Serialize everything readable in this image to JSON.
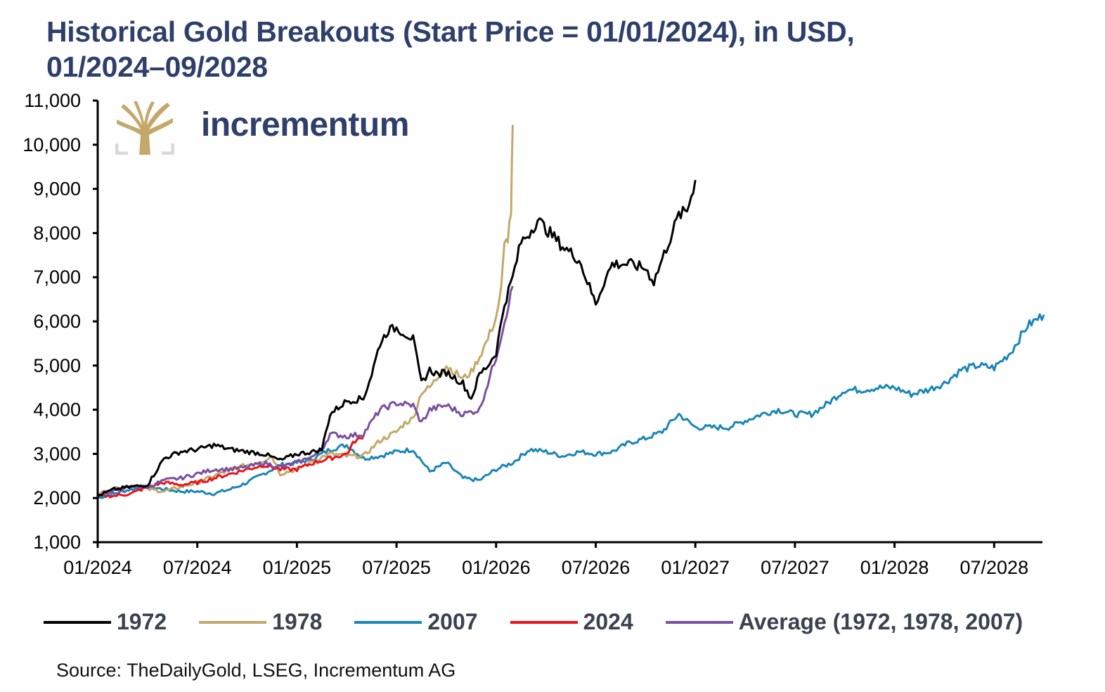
{
  "title_line1": "Historical Gold Breakouts (Start Price = 01/01/2024), in USD,",
  "title_line2": "01/2024–09/2028",
  "logo": {
    "icon": "tree-logo-icon",
    "brand": "incrementum",
    "gold": "#c4a86a",
    "navy": "#2e3f6b",
    "frame": "#d9d9d9"
  },
  "source": "Source: TheDailyGold, LSEG, Incrementum AG",
  "chart_data": {
    "type": "line",
    "title": "Historical Gold Breakouts (Start Price = 01/01/2024), in USD, 01/2024–09/2028",
    "xlabel": "",
    "ylabel": "",
    "x_unit": "months since 01/2024",
    "xlim": [
      0,
      58
    ],
    "ylim": [
      1000,
      11000
    ],
    "y_ticks": [
      1000,
      2000,
      3000,
      4000,
      5000,
      6000,
      7000,
      8000,
      9000,
      10000,
      11000
    ],
    "y_tick_labels": [
      "1,000",
      "2,000",
      "3,000",
      "4,000",
      "5,000",
      "6,000",
      "7,000",
      "8,000",
      "9,000",
      "10,000",
      "11,000"
    ],
    "x_ticks": [
      0,
      6,
      12,
      18,
      24,
      30,
      36,
      42,
      48,
      54
    ],
    "x_tick_labels": [
      "01/2024",
      "07/2024",
      "01/2025",
      "07/2025",
      "01/2026",
      "07/2026",
      "01/2027",
      "07/2027",
      "01/2028",
      "07/2028"
    ],
    "grid": false,
    "legend": "bottom",
    "series": [
      {
        "name": "1972",
        "color": "#000000",
        "x": [
          0,
          1,
          2,
          3,
          4,
          5,
          6,
          7,
          8,
          9,
          10,
          11,
          12,
          13,
          13.5,
          14,
          15,
          16,
          16.5,
          17,
          17.5,
          18,
          19,
          19.5,
          20,
          20.5,
          21,
          22,
          22.5,
          23,
          23.5,
          24,
          24.5,
          25,
          25.5,
          26,
          26.5,
          27,
          28,
          29,
          30,
          30.5,
          31,
          32,
          33,
          33.5,
          34,
          35,
          35.5,
          36
        ],
        "y": [
          2050,
          2200,
          2250,
          2300,
          2900,
          3050,
          3100,
          3200,
          3100,
          3050,
          3000,
          2850,
          3000,
          3050,
          3100,
          3900,
          4200,
          4250,
          4800,
          5500,
          5800,
          5850,
          5600,
          4600,
          4900,
          4800,
          4850,
          4600,
          4250,
          4800,
          5000,
          5300,
          6400,
          7000,
          7800,
          8000,
          8300,
          8100,
          7700,
          7400,
          6400,
          6900,
          7300,
          7300,
          7200,
          6900,
          7400,
          8400,
          8500,
          9200
        ]
      },
      {
        "name": "1978",
        "color": "#c4a86a",
        "x": [
          0,
          1,
          2,
          3,
          4,
          5,
          6,
          7,
          8,
          9,
          10,
          10.5,
          11,
          12,
          13,
          14,
          15,
          16,
          17,
          18,
          18.5,
          19,
          19.5,
          20,
          21,
          22,
          22.5,
          23,
          23.5,
          24,
          24.3,
          24.5,
          24.7,
          24.9,
          25
        ],
        "y": [
          2100,
          2200,
          2300,
          2200,
          2150,
          2250,
          2350,
          2500,
          2650,
          2750,
          2850,
          2950,
          2550,
          2650,
          2850,
          3000,
          2950,
          2950,
          3300,
          3500,
          3700,
          3800,
          4400,
          4500,
          5000,
          4700,
          4850,
          5200,
          5600,
          6100,
          6700,
          7700,
          7900,
          8500,
          10450
        ]
      },
      {
        "name": "2007",
        "color": "#1a86b8",
        "x": [
          0,
          1,
          2,
          3,
          4,
          5,
          6,
          7,
          8,
          9,
          10,
          11,
          12,
          13,
          14,
          15,
          16,
          17,
          18,
          19,
          20,
          21,
          22,
          23,
          24,
          25,
          26,
          27,
          28,
          29,
          30,
          31,
          32,
          33,
          34,
          35,
          36,
          37,
          38,
          39,
          40,
          41,
          42,
          43,
          44,
          45,
          46,
          47,
          48,
          49,
          50,
          51,
          52,
          53,
          54,
          55,
          56,
          57
        ],
        "y": [
          2000,
          2100,
          2200,
          2250,
          2200,
          2150,
          2150,
          2100,
          2200,
          2350,
          2550,
          2750,
          2800,
          2900,
          3100,
          3200,
          2900,
          2950,
          3050,
          3100,
          2600,
          2800,
          2450,
          2400,
          2650,
          2800,
          3100,
          3050,
          2950,
          3050,
          3000,
          3050,
          3250,
          3350,
          3500,
          3900,
          3600,
          3600,
          3600,
          3750,
          3900,
          4000,
          3900,
          3900,
          4150,
          4450,
          4450,
          4500,
          4500,
          4350,
          4450,
          4600,
          4900,
          5000,
          4950,
          5300,
          5900,
          6150
        ]
      },
      {
        "name": "2024",
        "color": "#e8141b",
        "x": [
          0,
          1,
          2,
          3,
          4,
          5,
          6,
          7,
          8,
          9,
          10,
          11,
          12,
          13,
          14,
          15,
          15.5,
          16
        ],
        "y": [
          2050,
          2050,
          2100,
          2250,
          2350,
          2300,
          2350,
          2450,
          2550,
          2650,
          2750,
          2650,
          2650,
          2800,
          2900,
          3000,
          3300,
          3350
        ]
      },
      {
        "name": "Average (1972, 1978, 2007)",
        "color": "#7b4fa0",
        "x": [
          0,
          1,
          2,
          3,
          4,
          5,
          6,
          7,
          8,
          9,
          10,
          11,
          12,
          13,
          13.5,
          14,
          15,
          16,
          17,
          18,
          19,
          19.5,
          20,
          21,
          22,
          23,
          24,
          24.5,
          25
        ],
        "y": [
          2050,
          2150,
          2250,
          2250,
          2400,
          2450,
          2550,
          2650,
          2650,
          2700,
          2800,
          2700,
          2800,
          2950,
          3100,
          3450,
          3400,
          3450,
          4000,
          4150,
          4100,
          3700,
          4000,
          4100,
          3900,
          4000,
          5200,
          6000,
          6800
        ]
      }
    ]
  },
  "legend": [
    {
      "label": "1972",
      "color": "#000000"
    },
    {
      "label": "1978",
      "color": "#c4a86a"
    },
    {
      "label": "2007",
      "color": "#1a86b8"
    },
    {
      "label": "2024",
      "color": "#e8141b"
    },
    {
      "label": "Average (1972, 1978, 2007)",
      "color": "#7b4fa0"
    }
  ]
}
